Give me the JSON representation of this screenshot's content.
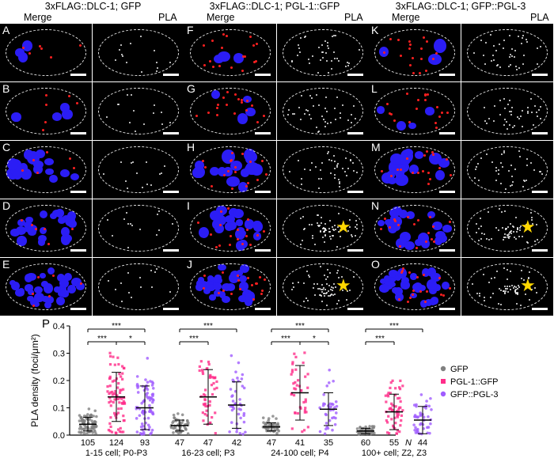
{
  "figure": {
    "columns": [
      {
        "title": "3xFLAG::DLC-1; GFP",
        "merge_label": "Merge",
        "pla_label": "PLA",
        "letters": [
          "A",
          "B",
          "C",
          "D",
          "E"
        ]
      },
      {
        "title": "3xFLAG::DLC-1; PGL-1::GFP",
        "merge_label": "Merge",
        "pla_label": "PLA",
        "letters": [
          "F",
          "G",
          "H",
          "I",
          "J"
        ]
      },
      {
        "title": "3xFLAG::DLC-1; GFP::PGL-3",
        "merge_label": "Merge",
        "pla_label": "PLA",
        "letters": [
          "K",
          "L",
          "M",
          "N",
          "O"
        ]
      }
    ],
    "star_panels": [
      "I",
      "J",
      "N",
      "O"
    ],
    "chart_label": "P"
  },
  "chart_data": {
    "type": "scatter",
    "ylabel": "PLA density (foci/μm²)",
    "ylim": [
      0,
      0.4
    ],
    "yticks": [
      "0.0",
      "0.1",
      "0.2",
      "0.3",
      "0.4"
    ],
    "n_label": "N",
    "legend_placement": "right",
    "series": [
      {
        "name": "GFP",
        "color": "#808080"
      },
      {
        "name": "PGL-1::GFP",
        "color": "#ff2d8a"
      },
      {
        "name": "GFP::PGL-3",
        "color": "#a05cff"
      }
    ],
    "groups": [
      {
        "label": "1-15 cell; P0-P3",
        "n": [
          "105",
          "124",
          "93"
        ],
        "means": [
          0.04,
          0.14,
          0.1
        ],
        "sd": [
          0.025,
          0.09,
          0.08
        ],
        "sig": [
          {
            "from": 0,
            "to": 2,
            "text": "***",
            "level": 2
          },
          {
            "from": 0,
            "to": 1,
            "text": "***",
            "level": 1
          },
          {
            "from": 1,
            "to": 2,
            "text": "*",
            "level": 1
          }
        ]
      },
      {
        "label": "16-23 cell; P3",
        "n": [
          "47",
          "47",
          "42"
        ],
        "means": [
          0.035,
          0.14,
          0.11
        ],
        "sd": [
          0.02,
          0.1,
          0.085
        ],
        "sig": [
          {
            "from": 0,
            "to": 2,
            "text": "***",
            "level": 2
          },
          {
            "from": 0,
            "to": 1,
            "text": "***",
            "level": 1
          }
        ]
      },
      {
        "label": "24-100 cell; P4",
        "n": [
          "47",
          "41",
          "35"
        ],
        "means": [
          0.03,
          0.155,
          0.095
        ],
        "sd": [
          0.015,
          0.1,
          0.06
        ],
        "sig": [
          {
            "from": 0,
            "to": 2,
            "text": "***",
            "level": 2
          },
          {
            "from": 0,
            "to": 1,
            "text": "***",
            "level": 1
          },
          {
            "from": 1,
            "to": 2,
            "text": "*",
            "level": 1
          }
        ]
      },
      {
        "label": "100+ cell; Z2, Z3",
        "n": [
          "60",
          "55",
          "44"
        ],
        "means": [
          0.015,
          0.085,
          0.055
        ],
        "sd": [
          0.01,
          0.065,
          0.05
        ],
        "sig": [
          {
            "from": 0,
            "to": 2,
            "text": "***",
            "level": 2
          },
          {
            "from": 0,
            "to": 1,
            "text": "***",
            "level": 1
          }
        ]
      }
    ]
  }
}
